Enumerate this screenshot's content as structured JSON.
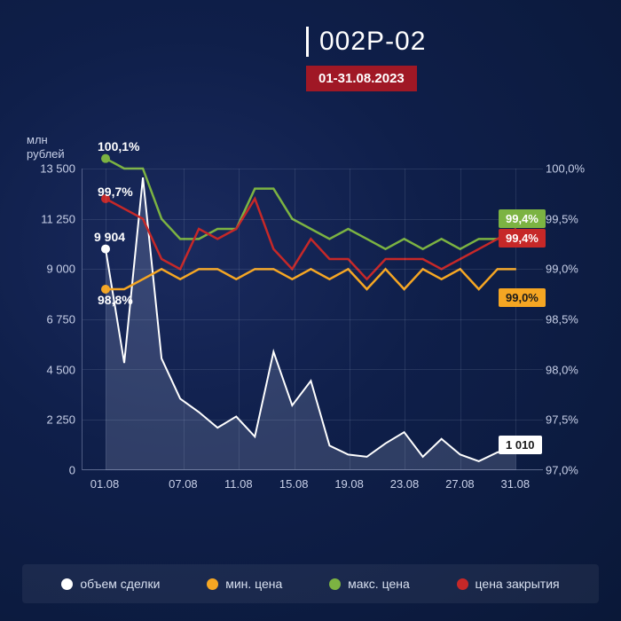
{
  "header": {
    "title": "002P-02",
    "date_range": "01-31.08.2023"
  },
  "chart": {
    "y_left": {
      "label_line1": "млн",
      "label_line2": "рублей",
      "min": 0,
      "max": 13500,
      "ticks": [
        "13 500",
        "11 250",
        "9 000",
        "6 750",
        "4 500",
        "2 250",
        "0"
      ]
    },
    "y_right": {
      "min": 97.0,
      "max": 100.0,
      "ticks": [
        "100,0%",
        "99,5%",
        "99,0%",
        "98,5%",
        "98,0%",
        "97,5%",
        "97,0%"
      ]
    },
    "x": {
      "ticks": [
        "01.08",
        "07.08",
        "11.08",
        "15.08",
        "19.08",
        "23.08",
        "27.08",
        "31.08"
      ],
      "tick_positions_pct": [
        5,
        22,
        34,
        46,
        58,
        70,
        82,
        94
      ]
    },
    "grid_color": "rgba(200,210,240,0.12)",
    "series": {
      "volume": {
        "color": "#ffffff",
        "fill": "rgba(180,190,220,0.20)",
        "values": [
          9904,
          4800,
          13100,
          5000,
          3200,
          2600,
          1900,
          2400,
          1500,
          5300,
          2900,
          4000,
          1100,
          700,
          600,
          1200,
          1700,
          600,
          1400,
          700,
          400,
          800,
          1010
        ],
        "first_label": "9 904",
        "last_label": "1 010"
      },
      "min_price": {
        "color": "#f5a623",
        "values": [
          98.8,
          98.8,
          98.9,
          99.0,
          98.9,
          99.0,
          99.0,
          98.9,
          99.0,
          99.0,
          98.9,
          99.0,
          98.9,
          99.0,
          98.8,
          99.0,
          98.8,
          99.0,
          98.9,
          99.0,
          98.8,
          99.0,
          99.0
        ],
        "first_label": "98,8%",
        "last_label": "99,0%"
      },
      "max_price": {
        "color": "#7cb342",
        "values": [
          100.1,
          100.0,
          100.0,
          99.5,
          99.3,
          99.3,
          99.4,
          99.4,
          99.8,
          99.8,
          99.5,
          99.4,
          99.3,
          99.4,
          99.3,
          99.2,
          99.3,
          99.2,
          99.3,
          99.2,
          99.3,
          99.3,
          99.4
        ],
        "first_label": "100,1%",
        "last_label": "99,4%"
      },
      "close_price": {
        "color": "#c62828",
        "values": [
          99.7,
          99.6,
          99.5,
          99.1,
          99.0,
          99.4,
          99.3,
          99.4,
          99.7,
          99.2,
          99.0,
          99.3,
          99.1,
          99.1,
          98.9,
          99.1,
          99.1,
          99.1,
          99.0,
          99.1,
          99.2,
          99.3,
          99.4
        ],
        "first_label": "99,7%",
        "last_label": "99,4%"
      }
    },
    "callout_bg": {
      "min_price": "#f5a623",
      "max_price": "#7cb342",
      "close_price": "#c62828",
      "volume": "#ffffff"
    }
  },
  "legend": {
    "items": [
      {
        "label": "объем сделки",
        "color": "#ffffff"
      },
      {
        "label": "мин. цена",
        "color": "#f5a623"
      },
      {
        "label": "макс. цена",
        "color": "#7cb342"
      },
      {
        "label": "цена закрытия",
        "color": "#c62828"
      }
    ]
  }
}
